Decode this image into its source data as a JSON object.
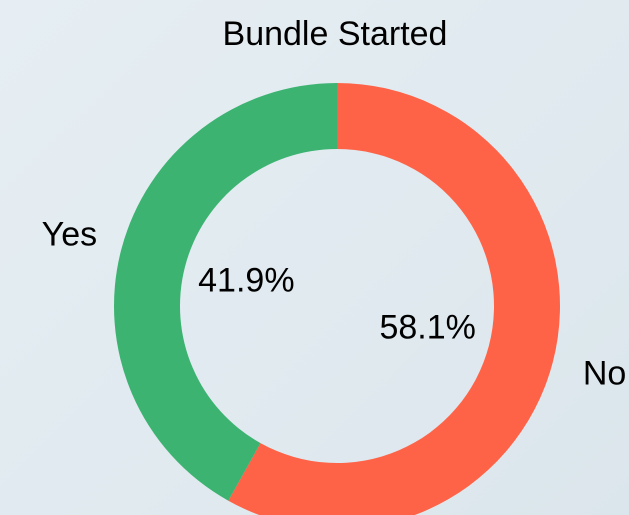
{
  "chart_data": {
    "type": "donut",
    "title": "Bundle Started",
    "categories": [
      "No",
      "Yes"
    ],
    "values": [
      58.1,
      41.9
    ],
    "value_labels": [
      "58.1%",
      "41.9%"
    ],
    "colors": [
      "#ff6347",
      "#3cb371"
    ]
  }
}
